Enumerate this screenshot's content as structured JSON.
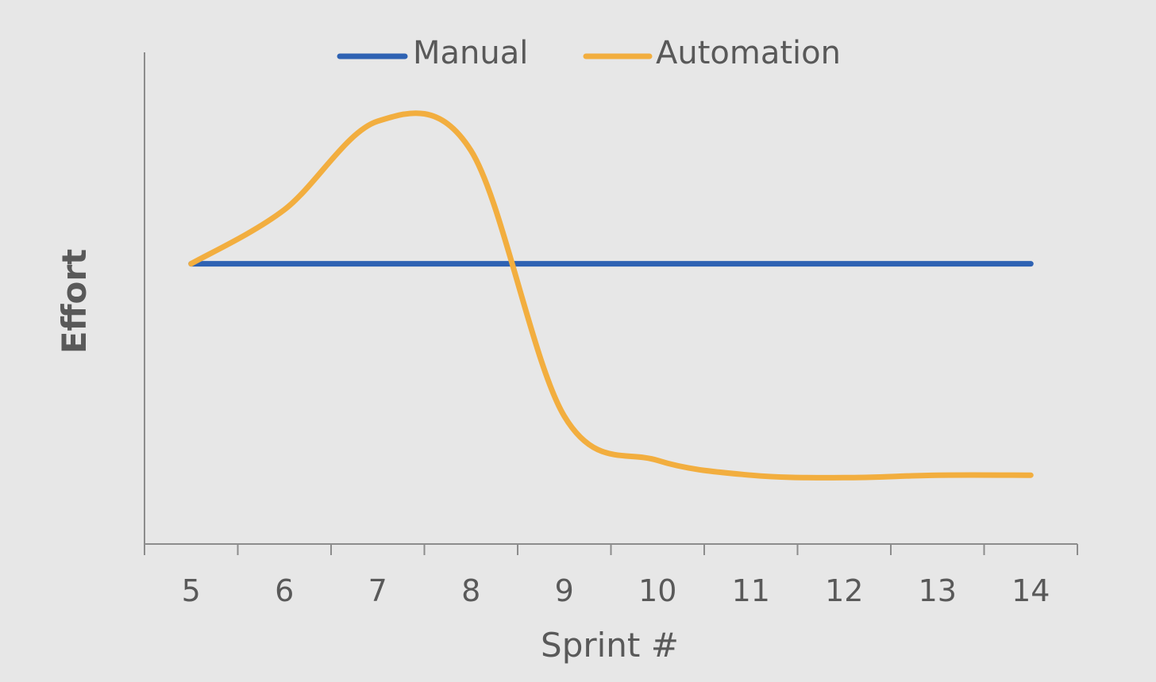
{
  "chart_data": {
    "type": "line",
    "title": "",
    "xlabel": "Sprint #",
    "ylabel": "Effort",
    "x": [
      5,
      6,
      7,
      8,
      9,
      10,
      11,
      12,
      13,
      14
    ],
    "xlim": [
      4.5,
      14.5
    ],
    "ylim": [
      0,
      10
    ],
    "grid": false,
    "legend_position": "top",
    "smooth": true,
    "series": [
      {
        "name": "Manual",
        "color": "#2e62b3",
        "values": [
          5.7,
          5.7,
          5.7,
          5.7,
          5.7,
          5.7,
          5.7,
          5.7,
          5.7,
          5.7
        ]
      },
      {
        "name": "Automation",
        "color": "#f2ae3f",
        "values": [
          5.7,
          6.8,
          8.6,
          8.0,
          2.6,
          1.7,
          1.4,
          1.35,
          1.4,
          1.4
        ]
      }
    ]
  }
}
